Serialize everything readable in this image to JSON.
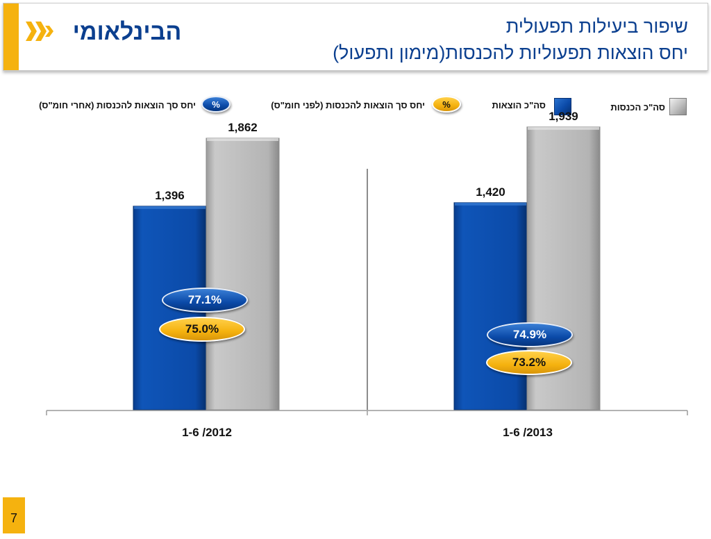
{
  "header": {
    "logo_text": "הבינלאומי",
    "title_line1": "שיפור ביעילות תפעולית",
    "title_line2": "יחס הוצאות תפעוליות להכנסות(מימון ותפעול)"
  },
  "legend": {
    "total_income": "סה\"כ הכנסות",
    "total_expenses": "סה\"כ הוצאות",
    "ratio_before": "יחס סך הוצאות להכנסות (לפני חומ\"ס)",
    "ratio_after": "יחס סך הוצאות להכנסות (אחרי חומ\"ס)",
    "percent_symbol": "%"
  },
  "colors": {
    "blue": "#0b4aa8",
    "gray": "#b8b8b8",
    "orange": "#f5b20f",
    "title_blue": "#0b3f8f"
  },
  "chart_data": {
    "type": "bar",
    "categories": [
      "1-6 /2012",
      "1-6 /2013"
    ],
    "series": [
      {
        "name": "סה\"כ הוצאות",
        "values": [
          1396,
          1420
        ],
        "labels": [
          "1,396",
          "1,420"
        ]
      },
      {
        "name": "סה\"כ הכנסות",
        "values": [
          1862,
          1939
        ],
        "labels": [
          "1,862",
          "1,939"
        ]
      }
    ],
    "ratios": {
      "after": {
        "name": "יחס סך הוצאות להכנסות (אחרי חומ\"ס)",
        "values": [
          "77.1%",
          "74.9%"
        ]
      },
      "before": {
        "name": "יחס סך הוצאות להכנסות (לפני חומ\"ס)",
        "values": [
          "75.0%",
          "73.2%"
        ]
      }
    },
    "ylim": [
      0,
      2400
    ],
    "grid": false,
    "legend_position": "top"
  },
  "page_number": "7"
}
